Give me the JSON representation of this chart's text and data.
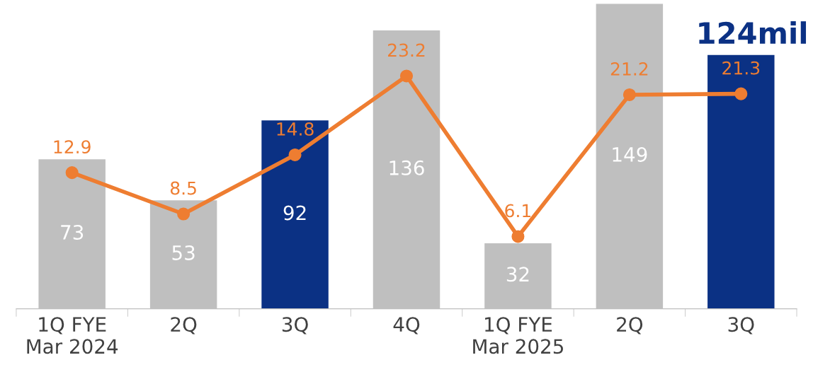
{
  "chart_data": {
    "type": "bar",
    "categories": [
      "1Q FYE\nMar 2024",
      "2Q",
      "3Q",
      "4Q",
      "1Q FYE\nMar 2025",
      "2Q",
      "3Q"
    ],
    "series": [
      {
        "colors": [
          "#bfbfbf",
          "#bfbfbf",
          "#0b3184",
          "#bfbfbf",
          "#bfbfbf",
          "#bfbfbf",
          "#0b3184"
        ],
        "values": [
          73,
          53,
          92,
          136,
          32,
          149,
          124
        ],
        "value_labels": [
          "73",
          "53",
          "92",
          "136",
          "32",
          "149",
          "124mil"
        ]
      },
      {
        "type": "line",
        "axis": "y2",
        "color": "#ee7d31",
        "values": [
          12.9,
          8.5,
          14.8,
          23.2,
          6.1,
          21.2,
          21.3
        ],
        "value_labels": [
          "12.9",
          "8.5",
          "14.8",
          "23.2",
          "6.1",
          "21.2",
          "21.3"
        ]
      }
    ],
    "marker": "circle",
    "line_style": "solid",
    "tick_labels": "x",
    "grid": false,
    "legend": false
  }
}
